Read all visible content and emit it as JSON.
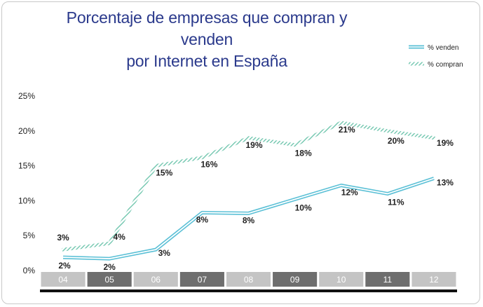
{
  "chart_data": {
    "type": "line",
    "title": "Porcentaje de empresas que compran y venden por Internet en España",
    "title_lines": [
      "Porcentaje de empresas que compran y venden",
      "por Internet en España"
    ],
    "categories": [
      "04",
      "05",
      "06",
      "07",
      "08",
      "09",
      "10",
      "11",
      "12"
    ],
    "ylim": [
      0,
      25
    ],
    "yticks": [
      "0%",
      "5%",
      "10%",
      "15%",
      "20%",
      "25%"
    ],
    "ytick_values": [
      0,
      5,
      10,
      15,
      20,
      25
    ],
    "legend_position": "top-right",
    "series": [
      {
        "name": "% venden",
        "color": "#5bc0d6",
        "style": "double-line",
        "values": [
          2,
          2,
          3,
          8,
          8,
          10,
          12,
          11,
          13
        ],
        "plot_values": [
          1.9,
          1.7,
          3.0,
          8.3,
          8.2,
          10.2,
          12.2,
          11.0,
          13.2
        ],
        "labels": [
          "2%",
          "2%",
          "3%",
          "8%",
          "8%",
          "10%",
          "12%",
          "11%",
          "13%"
        ]
      },
      {
        "name": "% compran",
        "color": "#66c2a8",
        "style": "hatched",
        "values": [
          3,
          4,
          15,
          16,
          19,
          18,
          21,
          20,
          19
        ],
        "plot_values": [
          3.0,
          3.9,
          15.0,
          16.2,
          19.0,
          18.0,
          21.2,
          20.0,
          19.0
        ],
        "labels": [
          "3%",
          "4%",
          "15%",
          "16%",
          "19%",
          "18%",
          "21%",
          "20%",
          "19%"
        ]
      }
    ],
    "category_colors": [
      "#c4c4c4",
      "#6e6e6e",
      "#c4c4c4",
      "#6e6e6e",
      "#c4c4c4",
      "#6e6e6e",
      "#c4c4c4",
      "#6e6e6e",
      "#c4c4c4"
    ]
  }
}
